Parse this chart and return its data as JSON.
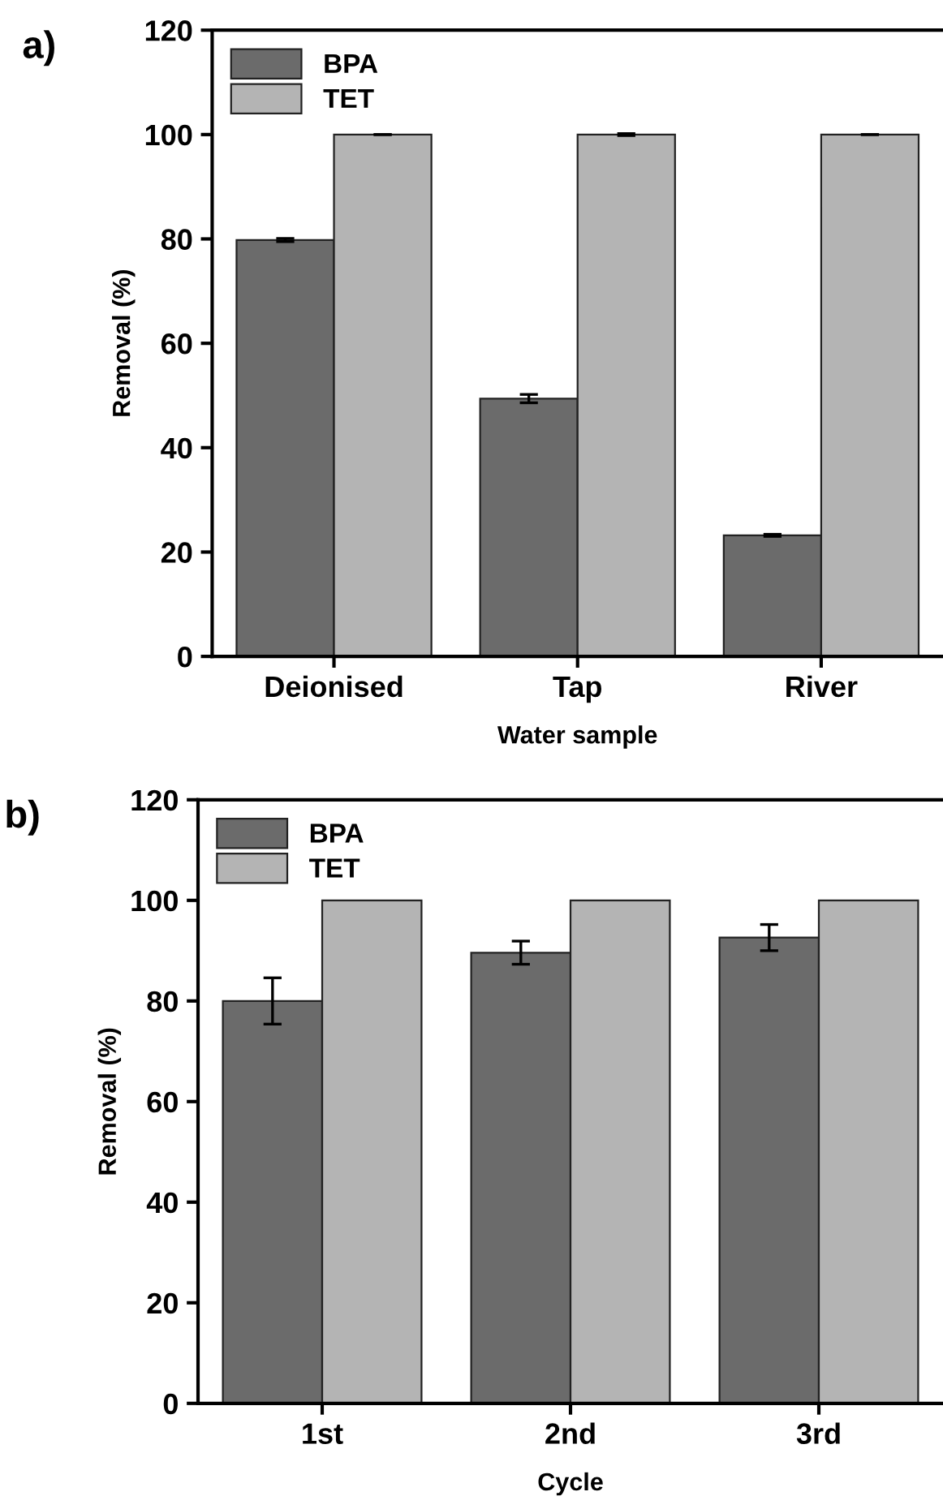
{
  "chart_data": [
    {
      "type": "bar",
      "title": "a)",
      "xlabel": "Water sample",
      "ylabel": "Removal (%)",
      "categories": [
        "Deionised",
        "Tap",
        "River"
      ],
      "ylim": [
        0,
        120
      ],
      "yticks": [
        0,
        20,
        40,
        60,
        80,
        100,
        120
      ],
      "legend": "top left",
      "grid": false,
      "series": [
        {
          "name": "BPA",
          "color": "#6b6b6b",
          "values": [
            79.8,
            49.4,
            23.2
          ],
          "errors": [
            0.3,
            0.8,
            0.2
          ]
        },
        {
          "name": "TET",
          "color": "#b4b4b4",
          "values": [
            100,
            100,
            100
          ],
          "errors": [
            null,
            0.2,
            null
          ]
        }
      ]
    },
    {
      "type": "bar",
      "title": "b)",
      "xlabel": "Cycle",
      "ylabel": "Removal (%)",
      "categories": [
        "1st",
        "2nd",
        "3rd"
      ],
      "ylim": [
        0,
        120
      ],
      "yticks": [
        0,
        20,
        40,
        60,
        80,
        100,
        120
      ],
      "legend": "top left",
      "grid": false,
      "series": [
        {
          "name": "BPA",
          "color": "#6b6b6b",
          "values": [
            80,
            89.6,
            92.6
          ],
          "errors": [
            4.6,
            2.3,
            2.6
          ]
        },
        {
          "name": "TET",
          "color": "#b4b4b4",
          "values": [
            100,
            100,
            100
          ]
        }
      ]
    }
  ]
}
